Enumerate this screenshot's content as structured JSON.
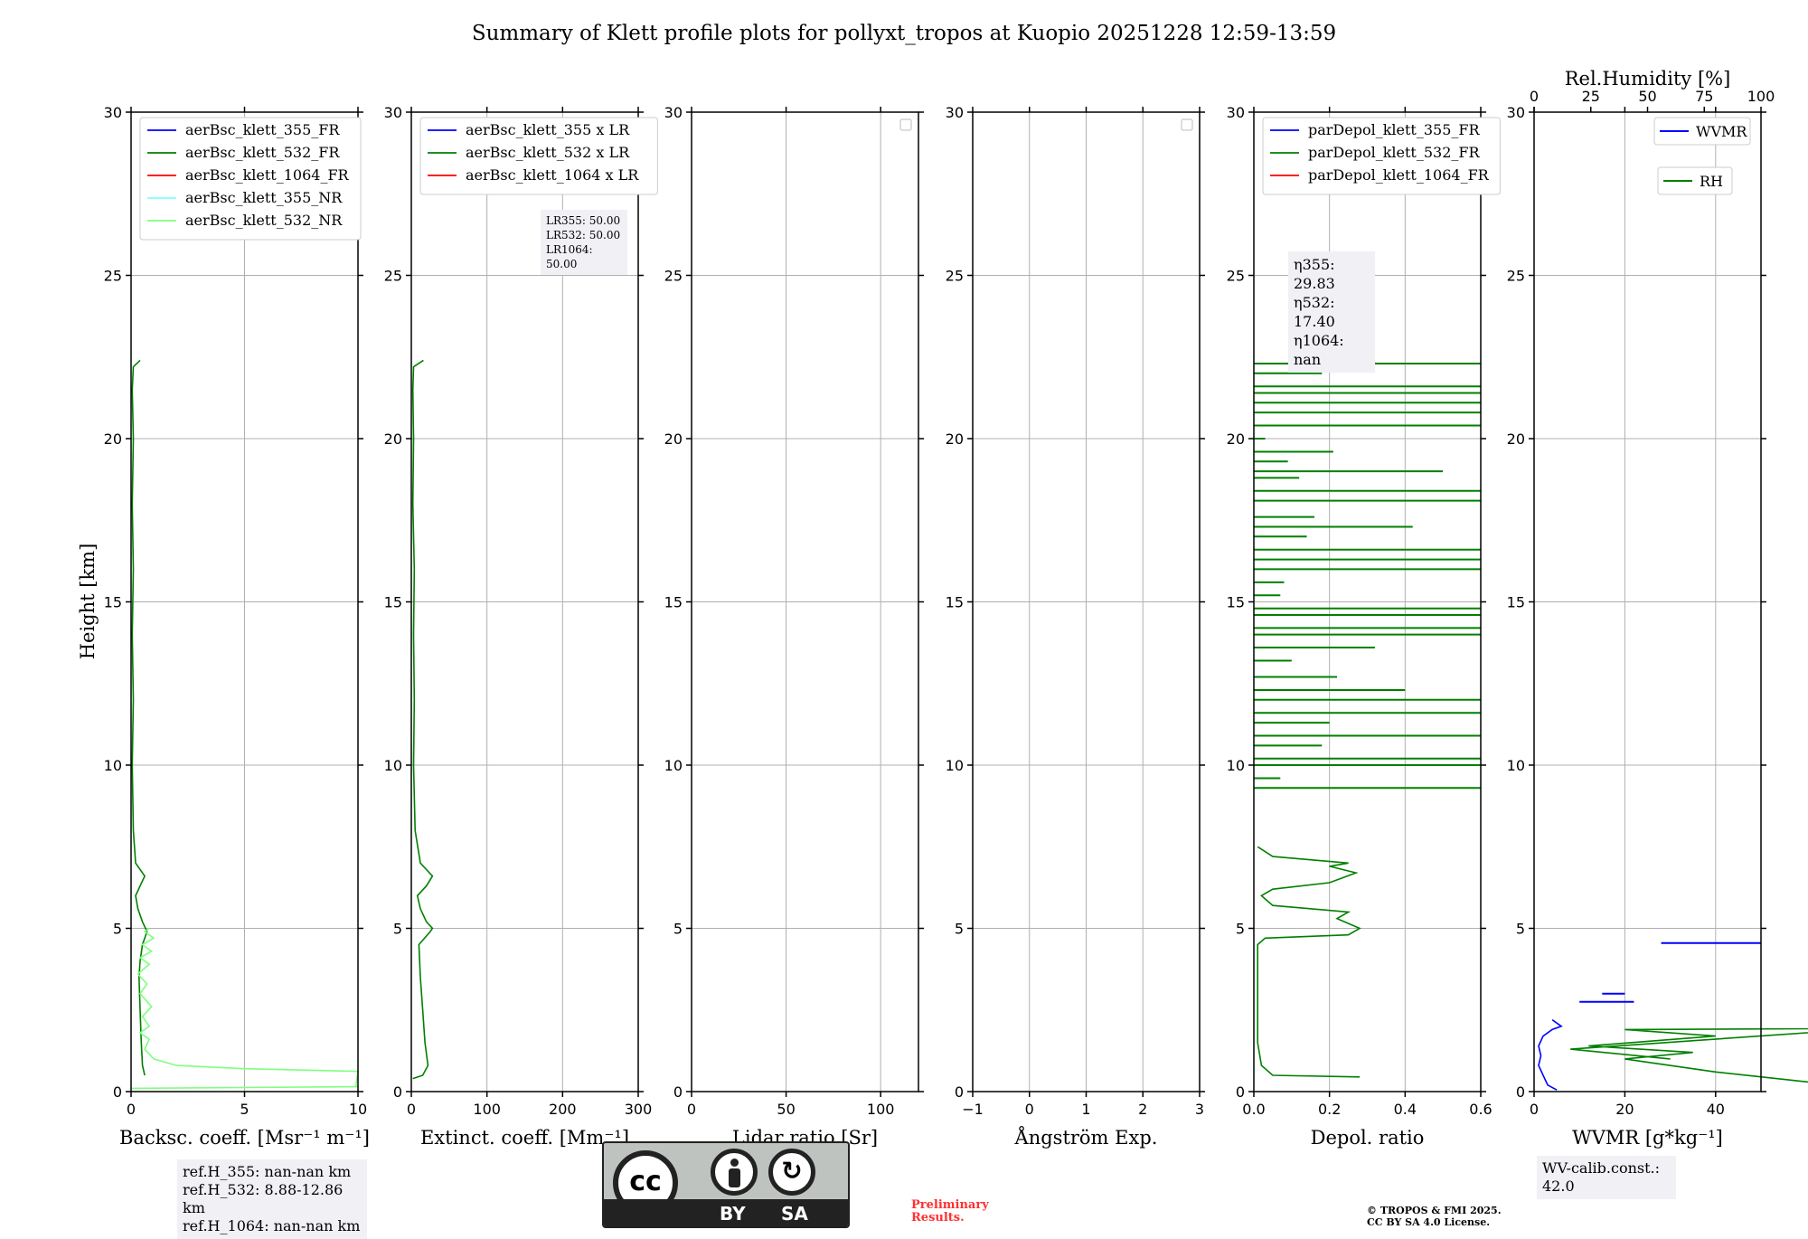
{
  "title": "Summary of Klett profile plots for pollyxt_tropos at Kuopio 20251228 12:59-13:59",
  "colors": {
    "b355": "#0000ff",
    "b532": "#008000",
    "b1064": "#ff0000",
    "nr355": "#7fffff",
    "nr532": "#7fff7f",
    "wvmr": "#0000ff",
    "rh": "#008000",
    "grid": "#b0b0b0",
    "prelim": "#ff3030"
  },
  "y_axis": {
    "label": "Height [km]",
    "range": [
      0,
      30
    ],
    "ticks": [
      0,
      5,
      10,
      15,
      20,
      25,
      30
    ]
  },
  "chart_data": [
    {
      "type": "line",
      "name": "backscatter",
      "xlabel": "Backsc. coeff. [Msr⁻¹ m⁻¹]",
      "xlim": [
        0,
        10
      ],
      "xticks": [
        0,
        5,
        10
      ],
      "ylim": [
        0,
        30
      ],
      "legend": [
        "aerBsc_klett_355_FR",
        "aerBsc_klett_532_FR",
        "aerBsc_klett_1064_FR",
        "aerBsc_klett_355_NR",
        "aerBsc_klett_532_NR"
      ],
      "legend_colors": [
        "b355",
        "b532",
        "b1064",
        "nr355",
        "nr532"
      ],
      "series": [
        {
          "name": "aerBsc_klett_532_FR",
          "color": "b532",
          "points": [
            [
              0.6,
              0.5
            ],
            [
              0.5,
              0.8
            ],
            [
              0.45,
              1.5
            ],
            [
              0.4,
              2.5
            ],
            [
              0.35,
              3.5
            ],
            [
              0.4,
              4.0
            ],
            [
              0.5,
              4.5
            ],
            [
              0.7,
              4.9
            ],
            [
              0.5,
              5.2
            ],
            [
              0.3,
              5.6
            ],
            [
              0.2,
              6.0
            ],
            [
              0.4,
              6.3
            ],
            [
              0.6,
              6.6
            ],
            [
              0.2,
              7.0
            ],
            [
              0.1,
              8
            ],
            [
              0.05,
              10
            ],
            [
              0.1,
              12
            ],
            [
              0.05,
              14
            ],
            [
              0.1,
              16
            ],
            [
              0.05,
              18
            ],
            [
              0.1,
              20
            ],
            [
              0.05,
              21.5
            ],
            [
              0.1,
              22.2
            ],
            [
              0.4,
              22.4
            ]
          ]
        },
        {
          "name": "aerBsc_klett_532_NR",
          "color": "nr532",
          "points": [
            [
              0,
              0.1
            ],
            [
              10,
              0.15
            ],
            [
              9.9,
              0.15
            ],
            [
              10,
              0.62
            ],
            [
              5,
              0.7
            ],
            [
              2,
              0.8
            ],
            [
              1,
              1.0
            ],
            [
              0.6,
              1.3
            ],
            [
              0.8,
              1.6
            ],
            [
              0.4,
              1.8
            ],
            [
              0.8,
              2.0
            ],
            [
              0.5,
              2.3
            ],
            [
              0.9,
              2.6
            ],
            [
              0.4,
              3.0
            ],
            [
              0.7,
              3.3
            ],
            [
              0.3,
              3.6
            ],
            [
              0.8,
              3.9
            ],
            [
              0.4,
              4.1
            ],
            [
              0.9,
              4.3
            ],
            [
              0.5,
              4.5
            ],
            [
              1.0,
              4.7
            ],
            [
              0.6,
              4.9
            ],
            [
              0.8,
              5.0
            ]
          ]
        }
      ],
      "annotation": [
        "ref.H_355: nan-nan km",
        "ref.H_532: 8.88-12.86 km",
        "ref.H_1064: nan-nan km"
      ]
    },
    {
      "type": "line",
      "name": "extinction",
      "xlabel": "Extinct. coeff. [Mm⁻¹]",
      "xlim": [
        0,
        300
      ],
      "xticks": [
        0,
        100,
        200,
        300
      ],
      "ylim": [
        0,
        30
      ],
      "legend": [
        "aerBsc_klett_355 x LR",
        "aerBsc_klett_532 x LR",
        "aerBsc_klett_1064 x LR"
      ],
      "legend_colors": [
        "b355",
        "b532",
        "b1064"
      ],
      "series": [
        {
          "name": "aerBsc_klett_532 x LR",
          "color": "b532",
          "points": [
            [
              2,
              0.4
            ],
            [
              15,
              0.5
            ],
            [
              22,
              0.8
            ],
            [
              18,
              1.5
            ],
            [
              15,
              2.5
            ],
            [
              12,
              3.5
            ],
            [
              10,
              4.5
            ],
            [
              25,
              4.9
            ],
            [
              28,
              5.0
            ],
            [
              20,
              5.2
            ],
            [
              12,
              5.6
            ],
            [
              8,
              6.0
            ],
            [
              20,
              6.3
            ],
            [
              28,
              6.6
            ],
            [
              12,
              7.0
            ],
            [
              5,
              8
            ],
            [
              3,
              10
            ],
            [
              4,
              12
            ],
            [
              3,
              14
            ],
            [
              4,
              16
            ],
            [
              2,
              18
            ],
            [
              3,
              20
            ],
            [
              2,
              21.5
            ],
            [
              3,
              22.2
            ],
            [
              16,
              22.4
            ]
          ]
        }
      ],
      "annotation": [
        "LR355: 50.00",
        "LR532: 50.00",
        "LR1064: 50.00"
      ]
    },
    {
      "type": "line",
      "name": "lidar-ratio",
      "xlabel": "Lidar ratio [Sr]",
      "xlim": [
        0,
        120
      ],
      "xticks": [
        0,
        50,
        100
      ],
      "ylim": [
        0,
        30
      ],
      "legend": [],
      "series": []
    },
    {
      "type": "line",
      "name": "angstrom",
      "xlabel": "Ångström Exp.",
      "xlim": [
        -1,
        3
      ],
      "xticks": [
        -1,
        0,
        1,
        2,
        3
      ],
      "ylim": [
        0,
        30
      ],
      "legend": [],
      "series": []
    },
    {
      "type": "line",
      "name": "depol",
      "xlabel": "Depol. ratio",
      "xlim": [
        0,
        0.6
      ],
      "xticks": [
        0.0,
        0.2,
        0.4,
        0.6
      ],
      "ylim": [
        0,
        30
      ],
      "legend": [
        "parDepol_klett_355_FR",
        "parDepol_klett_532_FR",
        "parDepol_klett_1064_FR"
      ],
      "legend_colors": [
        "b355",
        "b532",
        "b1064"
      ],
      "series": [
        {
          "name": "parDepol_klett_532_FR",
          "color": "b532",
          "points": [
            [
              0.28,
              0.45
            ],
            [
              0.05,
              0.5
            ],
            [
              0.02,
              0.8
            ],
            [
              0.01,
              1.5
            ],
            [
              0.01,
              3
            ],
            [
              0.01,
              4.5
            ],
            [
              0.03,
              4.7
            ],
            [
              0.25,
              4.8
            ],
            [
              0.28,
              5.0
            ],
            [
              0.22,
              5.3
            ],
            [
              0.25,
              5.5
            ],
            [
              0.05,
              5.7
            ],
            [
              0.02,
              6.0
            ],
            [
              0.05,
              6.2
            ],
            [
              0.2,
              6.4
            ],
            [
              0.27,
              6.7
            ],
            [
              0.2,
              6.9
            ],
            [
              0.25,
              7.0
            ],
            [
              0.05,
              7.2
            ],
            [
              0.01,
              7.5
            ]
          ]
        }
      ],
      "spikes": [
        [
          9.3,
          0.6
        ],
        [
          9.6,
          0.07
        ],
        [
          10.0,
          0.6
        ],
        [
          10.2,
          0.6
        ],
        [
          10.6,
          0.18
        ],
        [
          10.9,
          0.6
        ],
        [
          11.3,
          0.2
        ],
        [
          11.6,
          0.6
        ],
        [
          12.0,
          0.6
        ],
        [
          12.3,
          0.4
        ],
        [
          12.7,
          0.22
        ],
        [
          13.2,
          0.1
        ],
        [
          13.6,
          0.32
        ],
        [
          14.0,
          0.6
        ],
        [
          14.2,
          0.6
        ],
        [
          14.6,
          0.6
        ],
        [
          14.8,
          0.6
        ],
        [
          15.2,
          0.07
        ],
        [
          15.6,
          0.08
        ],
        [
          16.0,
          0.6
        ],
        [
          16.3,
          0.6
        ],
        [
          16.6,
          0.6
        ],
        [
          17.0,
          0.14
        ],
        [
          17.3,
          0.42
        ],
        [
          17.6,
          0.16
        ],
        [
          18.1,
          0.6
        ],
        [
          18.4,
          0.6
        ],
        [
          18.8,
          0.12
        ],
        [
          19.0,
          0.5
        ],
        [
          19.3,
          0.09
        ],
        [
          19.6,
          0.21
        ],
        [
          20.0,
          0.03
        ],
        [
          20.4,
          0.6
        ],
        [
          20.8,
          0.6
        ],
        [
          21.1,
          0.6
        ],
        [
          21.4,
          0.6
        ],
        [
          21.6,
          0.6
        ],
        [
          22.0,
          0.18
        ],
        [
          22.3,
          0.6
        ]
      ],
      "annotation": [
        "η355: 29.83",
        "η532: 17.40",
        "η1064: nan"
      ]
    },
    {
      "type": "line",
      "name": "wvmr-rh",
      "xlabel": "WVMR [g*kg⁻¹]",
      "xlabel_top": "Rel.Humidity [%]",
      "xlim": [
        0,
        50
      ],
      "xticks": [
        0,
        20,
        40
      ],
      "x2lim": [
        0,
        100
      ],
      "x2ticks": [
        0,
        25,
        50,
        75,
        100
      ],
      "ylim": [
        0,
        30
      ],
      "legend": [
        "WVMR",
        "RH"
      ],
      "legend_colors": [
        "wvmr",
        "rh"
      ],
      "series": [
        {
          "name": "WVMR",
          "color": "wvmr",
          "points": [
            [
              5,
              0.05
            ],
            [
              3,
              0.2
            ],
            [
              2,
              0.5
            ],
            [
              1,
              0.8
            ],
            [
              1.5,
              1.1
            ],
            [
              1,
              1.4
            ],
            [
              2,
              1.7
            ],
            [
              4,
              1.9
            ],
            [
              6,
              2.0
            ],
            [
              4,
              2.2
            ]
          ],
          "segments": [
            [
              [
                28,
                4.55
              ],
              [
                50,
                4.55
              ]
            ],
            [
              [
                10,
                2.75
              ],
              [
                22,
                2.75
              ]
            ],
            [
              [
                15,
                3.0
              ],
              [
                20,
                3.0
              ]
            ]
          ]
        },
        {
          "name": "RH",
          "color": "rh",
          "points": [
            [
              78,
              0.05
            ],
            [
              60,
              0.3
            ],
            [
              40,
              0.6
            ],
            [
              20,
              1.0
            ],
            [
              35,
              1.2
            ],
            [
              12,
              1.4
            ],
            [
              40,
              1.7
            ],
            [
              20,
              1.9
            ],
            [
              100,
              1.95
            ],
            [
              60,
              1.8
            ],
            [
              8,
              1.3
            ],
            [
              30,
              1.0
            ]
          ]
        }
      ],
      "annotation": [
        "WV-calib.const.: 42.0"
      ]
    }
  ],
  "footer": {
    "license_cc": "cc",
    "license_by": "BY",
    "license_sa": "SA",
    "preliminary": [
      "Preliminary",
      "Results."
    ],
    "copyright": [
      "© TROPOS & FMI 2025.",
      "CC BY SA 4.0 License."
    ]
  }
}
